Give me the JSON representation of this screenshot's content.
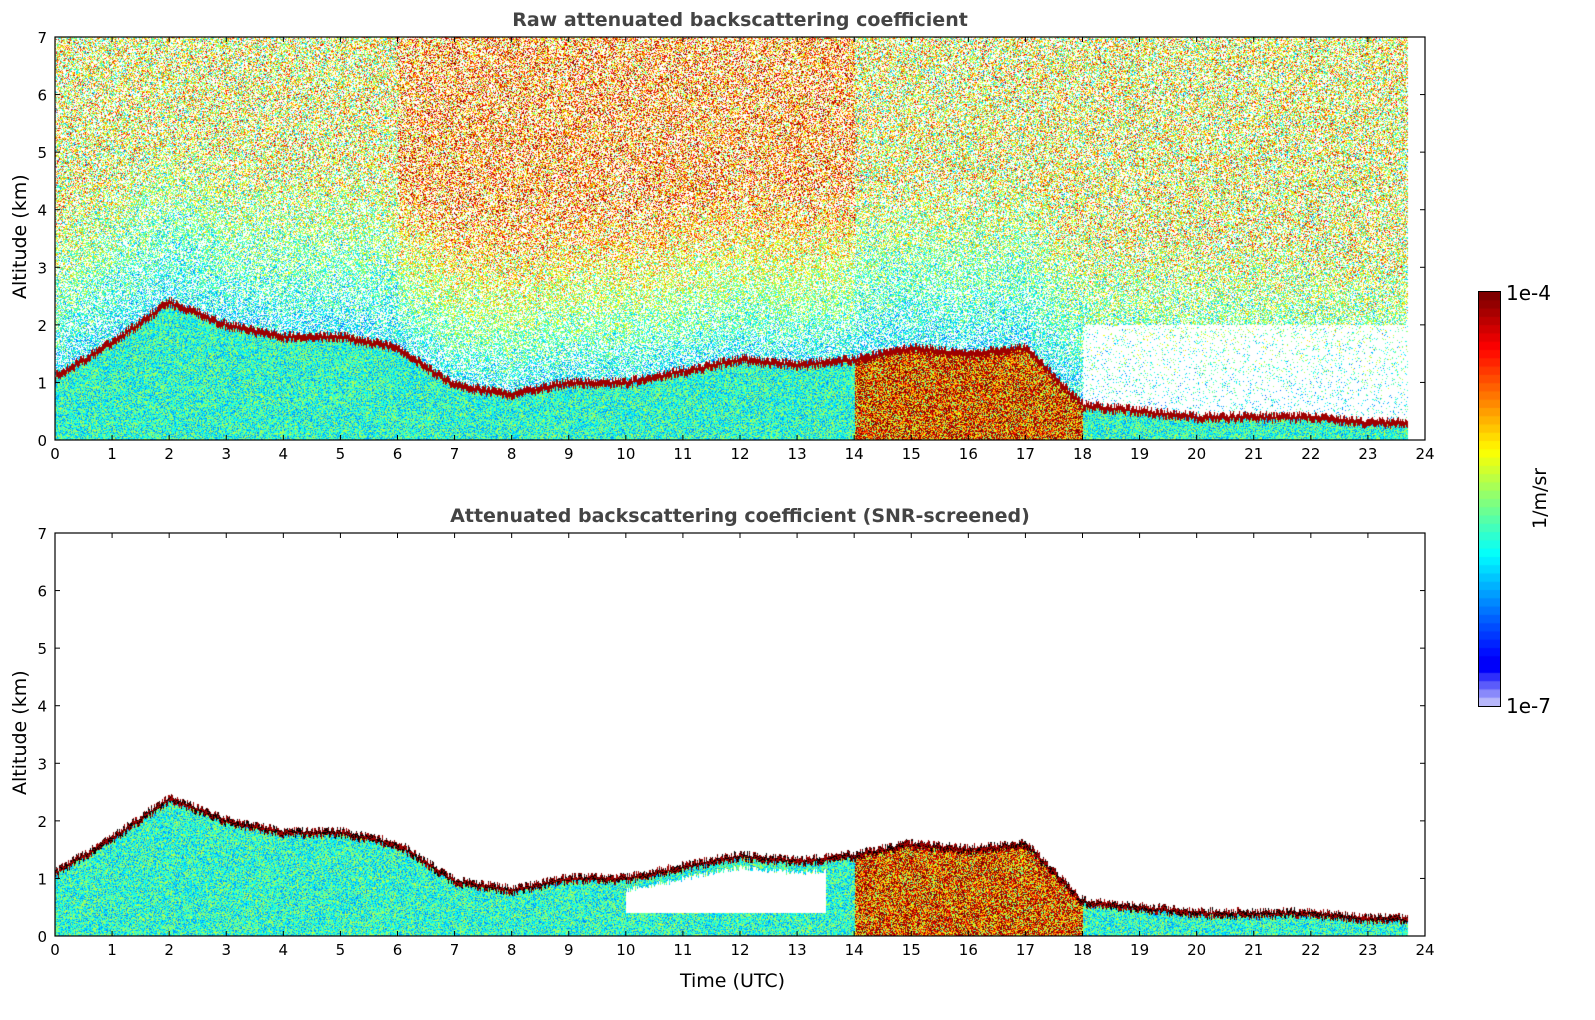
{
  "chart_data": [
    {
      "type": "heatmap",
      "title": "Raw attenuated backscattering coefficient",
      "xlabel": "",
      "ylabel": "Altitude (km)",
      "xlim": [
        0,
        24
      ],
      "ylim": [
        0,
        7
      ],
      "xticks": [
        0,
        1,
        2,
        3,
        4,
        5,
        6,
        7,
        8,
        9,
        10,
        11,
        12,
        13,
        14,
        15,
        16,
        17,
        18,
        19,
        20,
        21,
        22,
        23,
        24
      ],
      "yticks": [
        0,
        1,
        2,
        3,
        4,
        5,
        6,
        7
      ],
      "data_end_hour": 23.7,
      "layer_top_km_by_hour": [
        1.1,
        1.7,
        2.4,
        2.0,
        1.8,
        1.8,
        1.6,
        0.95,
        0.8,
        1.0,
        1.0,
        1.2,
        1.4,
        1.3,
        1.4,
        1.6,
        1.5,
        1.6,
        0.6,
        0.5,
        0.4,
        0.4,
        0.4,
        0.3
      ]
    },
    {
      "type": "heatmap",
      "title": "Attenuated backscattering coefficient (SNR-screened)",
      "xlabel": "Time (UTC)",
      "ylabel": "Altitude (km)",
      "xlim": [
        0,
        24
      ],
      "ylim": [
        0,
        7
      ],
      "xticks": [
        0,
        1,
        2,
        3,
        4,
        5,
        6,
        7,
        8,
        9,
        10,
        11,
        12,
        13,
        14,
        15,
        16,
        17,
        18,
        19,
        20,
        21,
        22,
        23,
        24
      ],
      "yticks": [
        0,
        1,
        2,
        3,
        4,
        5,
        6,
        7
      ],
      "data_end_hour": 23.7,
      "layer_top_km_by_hour": [
        1.1,
        1.7,
        2.4,
        2.0,
        1.8,
        1.8,
        1.6,
        0.95,
        0.8,
        1.0,
        1.0,
        1.2,
        1.4,
        1.3,
        1.4,
        1.6,
        1.5,
        1.6,
        0.6,
        0.5,
        0.4,
        0.4,
        0.4,
        0.3
      ]
    }
  ],
  "colorbar": {
    "label": "1/m/sr",
    "max_label": "1e-4",
    "min_label": "1e-7",
    "scale": "log",
    "colormap": "jet"
  }
}
